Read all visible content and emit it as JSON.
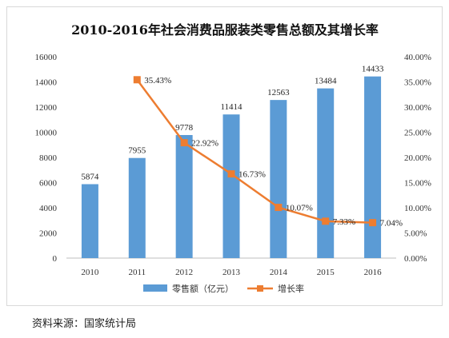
{
  "chart_data": {
    "type": "bar",
    "title": "2010-2016年社会消费品服装类零售总额及其增长率",
    "categories": [
      "2010",
      "2011",
      "2012",
      "2013",
      "2014",
      "2015",
      "2016"
    ],
    "series": [
      {
        "name": "零售额（亿元）",
        "type": "bar",
        "axis": "left",
        "color": "#5b9bd5",
        "values": [
          5874,
          7955,
          9778,
          11414,
          12563,
          13484,
          14433
        ],
        "labels": [
          "5874",
          "7955",
          "9778",
          "11414",
          "12563",
          "13484",
          "14433"
        ]
      },
      {
        "name": "增长率",
        "type": "line",
        "axis": "right",
        "color": "#ed7d31",
        "values": [
          null,
          35.43,
          22.92,
          16.73,
          10.07,
          7.33,
          7.04
        ],
        "labels": [
          "",
          "35.43%",
          "22.92%",
          "16.73%",
          "10.07%",
          "7.33%",
          "7.04%"
        ]
      }
    ],
    "y_left": {
      "range": [
        0,
        16000
      ],
      "ticks": [
        0,
        2000,
        4000,
        6000,
        8000,
        10000,
        12000,
        14000,
        16000
      ],
      "tick_labels": [
        "0",
        "2000",
        "4000",
        "6000",
        "8000",
        "10000",
        "12000",
        "14000",
        "16000"
      ]
    },
    "y_right": {
      "range": [
        0,
        40
      ],
      "ticks": [
        0,
        5,
        10,
        15,
        20,
        25,
        30,
        35,
        40
      ],
      "tick_labels": [
        "0.00%",
        "5.00%",
        "10.00%",
        "15.00%",
        "20.00%",
        "25.00%",
        "30.00%",
        "35.00%",
        "40.00%"
      ]
    },
    "grid": false,
    "legend_position": "bottom"
  },
  "source_note": "资料来源：国家统计局"
}
